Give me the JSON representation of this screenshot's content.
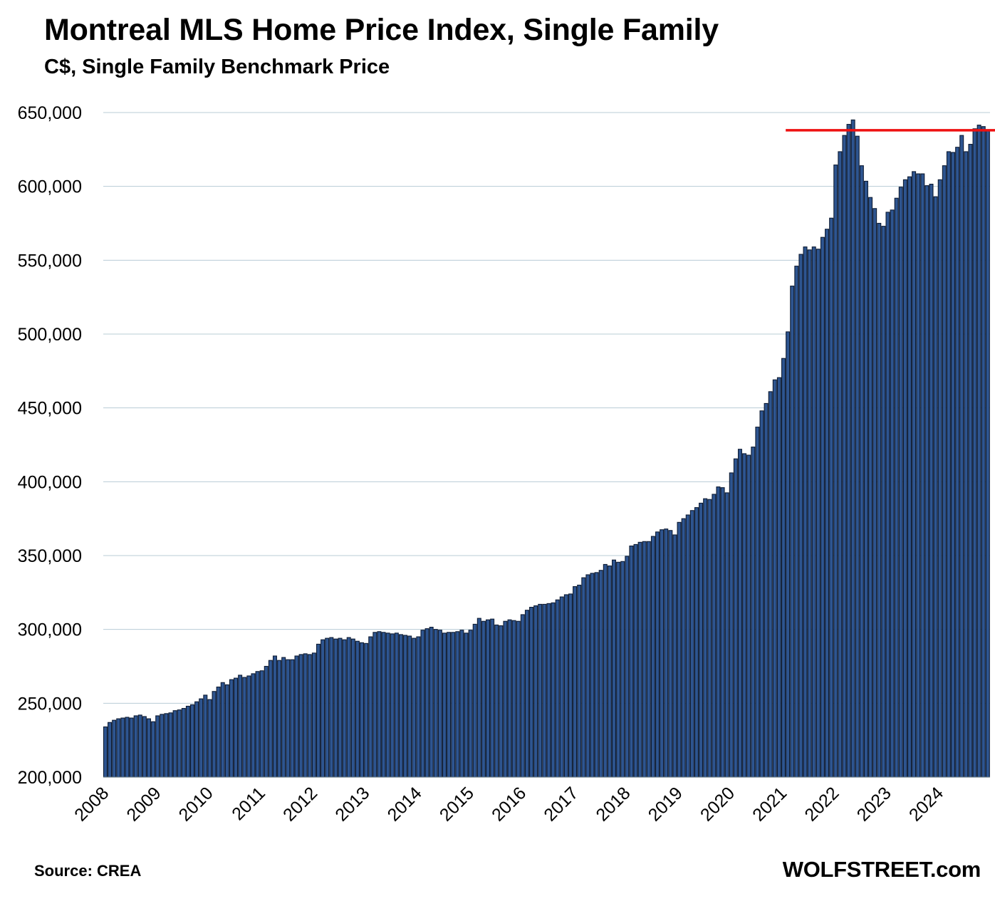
{
  "title": "Montreal MLS Home Price Index, Single Family",
  "subtitle": "C$, Single Family Benchmark Price",
  "source": "Source: CREA",
  "brand": "WOLFSTREET.com",
  "colors": {
    "bar_fill": "#2e5590",
    "bar_stroke": "#0d1b33",
    "gridline": "#b8ccd6",
    "reference_line": "#ee1111"
  },
  "chart_data": {
    "type": "bar",
    "title": "Montreal MLS Home Price Index, Single Family",
    "subtitle": "C$, Single Family Benchmark Price",
    "ylim": [
      200000,
      650000
    ],
    "yticks": [
      200000,
      250000,
      300000,
      350000,
      400000,
      450000,
      500000,
      550000,
      600000,
      650000
    ],
    "ytick_labels": [
      "200,000",
      "250,000",
      "300,000",
      "350,000",
      "400,000",
      "450,000",
      "500,000",
      "550,000",
      "600,000",
      "650,000"
    ],
    "xtick_labels": [
      "2008",
      "2009",
      "2010",
      "2011",
      "2012",
      "2013",
      "2014",
      "2015",
      "2016",
      "2017",
      "2018",
      "2019",
      "2020",
      "2021",
      "2022",
      "2023",
      "2024"
    ],
    "grid": "horizontal",
    "legend": "none",
    "period": "monthly, Jan 2008 to Dec 2024",
    "reference_line": {
      "y": 638000,
      "from_month": "2021-02",
      "to_month": "2024-12"
    },
    "values": [
      234000,
      237000,
      238500,
      239500,
      240000,
      240500,
      240000,
      241500,
      242000,
      241000,
      239500,
      237500,
      241500,
      242500,
      243000,
      243500,
      245000,
      245500,
      246500,
      248000,
      249000,
      251000,
      253000,
      255500,
      252500,
      258000,
      261000,
      264000,
      262500,
      266000,
      267000,
      269000,
      267500,
      268500,
      270000,
      271500,
      272000,
      275000,
      279000,
      282000,
      279000,
      281000,
      279500,
      279500,
      282000,
      283000,
      283500,
      283000,
      284000,
      290000,
      293000,
      294000,
      294500,
      293500,
      294000,
      293000,
      294500,
      293500,
      292000,
      291000,
      290500,
      295000,
      298000,
      298500,
      298000,
      297500,
      297000,
      297500,
      296500,
      296000,
      295500,
      294000,
      295000,
      299500,
      300500,
      301500,
      300000,
      299500,
      297500,
      298000,
      298000,
      298500,
      299500,
      297500,
      299500,
      303500,
      307500,
      305500,
      306500,
      307000,
      303000,
      302500,
      305500,
      306500,
      306000,
      305500,
      310000,
      313000,
      315000,
      316000,
      317000,
      317000,
      317500,
      318000,
      320000,
      322000,
      323500,
      324000,
      329000,
      330000,
      335000,
      337000,
      338000,
      338500,
      340000,
      344000,
      343000,
      347000,
      345500,
      346000,
      349500,
      356500,
      357500,
      359000,
      359500,
      359500,
      363000,
      366000,
      367500,
      368000,
      367000,
      364000,
      372500,
      375000,
      377500,
      380500,
      382500,
      385500,
      388500,
      388000,
      391500,
      396500,
      396000,
      392500,
      406000,
      415500,
      422000,
      419000,
      418000,
      423500,
      437000,
      448000,
      453000,
      461000,
      469000,
      470500,
      483500,
      501500,
      532500,
      546000,
      554000,
      559000,
      557000,
      559000,
      557500,
      565500,
      571000,
      578500,
      614500,
      623500,
      634500,
      642000,
      645000,
      634000,
      614000,
      603500,
      592500,
      585000,
      575000,
      573000,
      582500,
      584000,
      592000,
      599500,
      604500,
      606500,
      610000,
      608500,
      608500,
      600500,
      601500,
      593000,
      604500,
      614000,
      623500,
      623000,
      626500,
      634500,
      623500,
      628500,
      639000,
      641500,
      640500,
      637500
    ]
  }
}
